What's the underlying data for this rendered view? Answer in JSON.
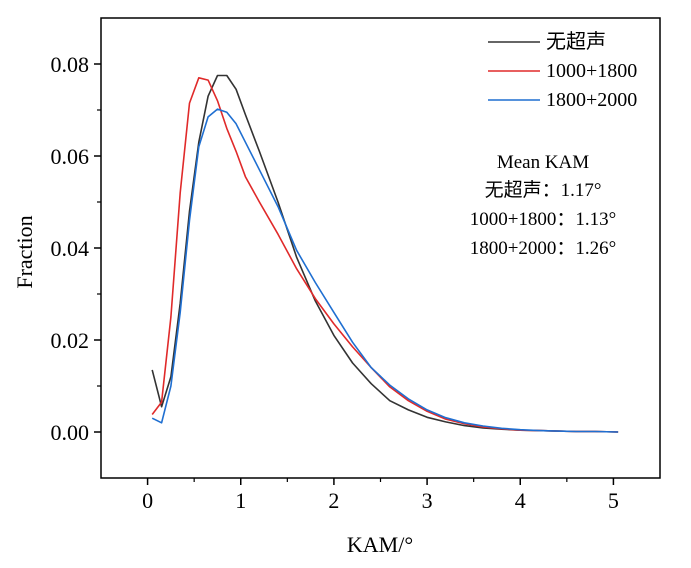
{
  "chart_data": {
    "type": "line",
    "xlabel": "KAM/°",
    "ylabel": "Fraction",
    "xlim": [
      -0.5,
      5.5
    ],
    "ylim": [
      -0.01,
      0.09
    ],
    "xticks": [
      0,
      1,
      2,
      3,
      4,
      5
    ],
    "yticks": [
      0.0,
      0.02,
      0.04,
      0.06,
      0.08
    ],
    "xtick_labels": [
      "0",
      "1",
      "2",
      "3",
      "4",
      "5"
    ],
    "ytick_labels": [
      "0.00",
      "0.02",
      "0.04",
      "0.06",
      "0.08"
    ],
    "grid": false,
    "legend_position": "top-right",
    "series": [
      {
        "name": "无超声",
        "color": "#333333",
        "x": [
          0.05,
          0.15,
          0.25,
          0.35,
          0.45,
          0.55,
          0.65,
          0.75,
          0.85,
          0.95,
          1.05,
          1.2,
          1.4,
          1.6,
          1.8,
          2.0,
          2.2,
          2.4,
          2.6,
          2.8,
          3.0,
          3.2,
          3.4,
          3.6,
          3.8,
          4.0,
          4.2,
          4.4,
          4.6,
          4.8,
          5.05
        ],
        "y": [
          0.0135,
          0.0055,
          0.012,
          0.028,
          0.048,
          0.063,
          0.073,
          0.0775,
          0.0775,
          0.0745,
          0.069,
          0.061,
          0.05,
          0.038,
          0.0285,
          0.021,
          0.015,
          0.0105,
          0.0068,
          0.0048,
          0.0032,
          0.0022,
          0.0014,
          0.0009,
          0.0006,
          0.0004,
          0.0003,
          0.0002,
          0.0001,
          0.0001,
          0.0
        ]
      },
      {
        "name": "1000+1800",
        "color": "#e02a2a",
        "x": [
          0.05,
          0.15,
          0.25,
          0.35,
          0.45,
          0.55,
          0.65,
          0.75,
          0.85,
          0.95,
          1.05,
          1.2,
          1.4,
          1.6,
          1.8,
          2.0,
          2.2,
          2.4,
          2.6,
          2.8,
          3.0,
          3.2,
          3.4,
          3.6,
          3.8,
          4.0,
          4.2,
          4.4,
          4.6,
          4.8,
          5.05
        ],
        "y": [
          0.0038,
          0.0065,
          0.025,
          0.052,
          0.0715,
          0.077,
          0.0765,
          0.072,
          0.066,
          0.061,
          0.0555,
          0.05,
          0.043,
          0.0355,
          0.029,
          0.0235,
          0.0185,
          0.014,
          0.0098,
          0.0068,
          0.0045,
          0.0028,
          0.0018,
          0.0011,
          0.0007,
          0.0004,
          0.0003,
          0.0002,
          0.0001,
          0.0001,
          0.0
        ]
      },
      {
        "name": "1800+2000",
        "color": "#1f6fd1",
        "x": [
          0.05,
          0.15,
          0.25,
          0.35,
          0.45,
          0.55,
          0.65,
          0.75,
          0.85,
          0.95,
          1.05,
          1.2,
          1.4,
          1.6,
          1.8,
          2.0,
          2.2,
          2.4,
          2.6,
          2.8,
          3.0,
          3.2,
          3.4,
          3.6,
          3.8,
          4.0,
          4.2,
          4.4,
          4.6,
          4.8,
          5.05
        ],
        "y": [
          0.003,
          0.002,
          0.01,
          0.026,
          0.046,
          0.062,
          0.0685,
          0.0702,
          0.0695,
          0.067,
          0.063,
          0.057,
          0.049,
          0.0395,
          0.0325,
          0.026,
          0.0195,
          0.014,
          0.0102,
          0.0072,
          0.0048,
          0.0031,
          0.002,
          0.0013,
          0.0008,
          0.0005,
          0.0003,
          0.0002,
          0.0001,
          0.0001,
          0.0
        ]
      }
    ],
    "annotation": {
      "title": "Mean KAM",
      "lines": [
        "无超声：1.17°",
        "1000+1800：1.13°",
        "1800+2000：1.26°"
      ]
    }
  }
}
